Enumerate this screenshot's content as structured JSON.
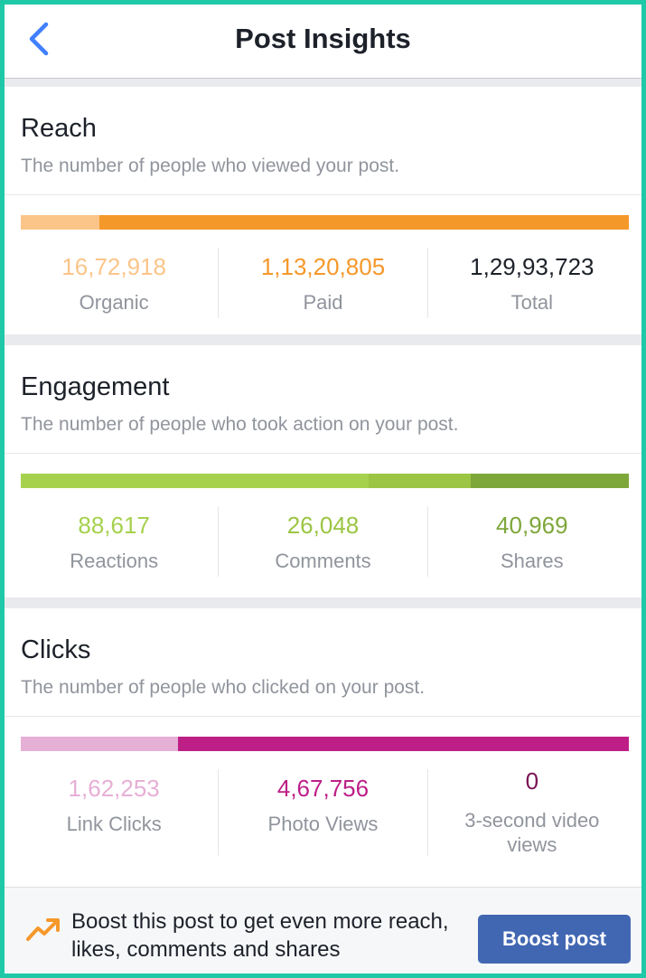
{
  "header": {
    "title": "Post Insights",
    "back_icon": "chevron-left-icon"
  },
  "colors": {
    "organic": "#fbc589",
    "paid": "#f5982a",
    "total": "#1d2129",
    "reactions": "#a6d14e",
    "comments": "#9bc543",
    "shares": "#7ea73a",
    "link_clicks": "#e6afd6",
    "photo_views": "#bd1f87",
    "video_views": "#7b1455",
    "accent": "#4267b2"
  },
  "reach": {
    "title": "Reach",
    "description": "The number of people who viewed your post.",
    "stats": [
      {
        "value": "16,72,918",
        "label": "Organic",
        "share": 0.129
      },
      {
        "value": "1,13,20,805",
        "label": "Paid",
        "share": 0.871
      },
      {
        "value": "1,29,93,723",
        "label": "Total"
      }
    ]
  },
  "engagement": {
    "title": "Engagement",
    "description": "The number of people who took action on your post.",
    "stats": [
      {
        "value": "88,617",
        "label": "Reactions",
        "share": 0.572
      },
      {
        "value": "26,048",
        "label": "Comments",
        "share": 0.168
      },
      {
        "value": "40,969",
        "label": "Shares",
        "share": 0.26
      }
    ]
  },
  "clicks": {
    "title": "Clicks",
    "description": "The number of people who clicked on your post.",
    "stats": [
      {
        "value": "1,62,253",
        "label": "Link Clicks",
        "share": 0.258
      },
      {
        "value": "4,67,756",
        "label": "Photo Views",
        "share": 0.742
      },
      {
        "value": "0",
        "label": "3-second video views"
      }
    ]
  },
  "footer": {
    "icon": "trending-up-icon",
    "text": "Boost this post to get even more reach, likes, comments and shares",
    "button_label": "Boost post"
  }
}
